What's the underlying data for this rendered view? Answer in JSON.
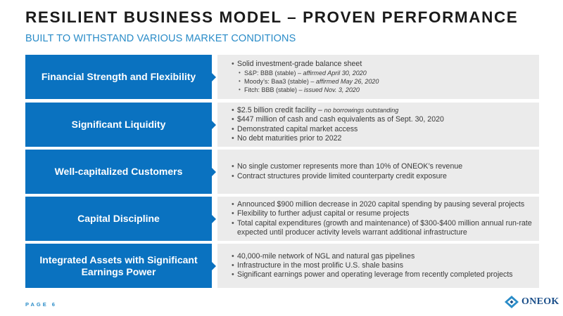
{
  "header": {
    "title": "RESILIENT BUSINESS MODEL – PROVEN PERFORMANCE",
    "subtitle": "BUILT TO WITHSTAND VARIOUS MARKET CONDITIONS"
  },
  "colors": {
    "accent_blue": "#0a72c0",
    "subtitle_blue": "#2a8cc8",
    "panel_gray": "#ebebeb"
  },
  "rows": [
    {
      "label": "Financial Strength and Flexibility",
      "bullets": [
        {
          "text": "Solid investment-grade balance sheet",
          "subs": [
            {
              "text": "S&P: BBB (stable) – ",
              "em": "affirmed April 30, 2020"
            },
            {
              "text": "Moody’s: Baa3 (stable) – ",
              "em": "affirmed May 26, 2020"
            },
            {
              "text": "Fitch: BBB (stable) – ",
              "em": "issued Nov. 3, 2020"
            }
          ]
        }
      ]
    },
    {
      "label": "Significant Liquidity",
      "bullets": [
        {
          "text": "$2.5 billion credit facility – ",
          "em": "no borrowings outstanding"
        },
        {
          "text": "$447 million of cash and cash equivalents as of Sept. 30, 2020"
        },
        {
          "text": "Demonstrated capital market access"
        },
        {
          "text": "No debt maturities prior to 2022"
        }
      ]
    },
    {
      "label": "Well-capitalized Customers",
      "bullets": [
        {
          "text": "No single customer represents more than 10% of ONEOK’s revenue"
        },
        {
          "text": "Contract structures provide limited counterparty credit exposure"
        }
      ]
    },
    {
      "label": "Capital Discipline",
      "bullets": [
        {
          "text": "Announced $900 million decrease in 2020 capital spending by pausing several projects"
        },
        {
          "text": "Flexibility to further adjust capital or resume projects"
        },
        {
          "text": "Total capital expenditures (growth and maintenance) of $300-$400 million annual run-rate expected until producer activity levels warrant additional infrastructure"
        }
      ]
    },
    {
      "label": "Integrated Assets with Significant Earnings Power",
      "bullets": [
        {
          "text": "40,000-mile network of NGL and natural gas pipelines"
        },
        {
          "text": "Infrastructure in the most prolific U.S. shale basins"
        },
        {
          "text": "Significant earnings power and operating leverage from recently completed projects"
        }
      ]
    }
  ],
  "footer": {
    "page_label": "PAGE 6",
    "logo_text": "ONEOK"
  }
}
